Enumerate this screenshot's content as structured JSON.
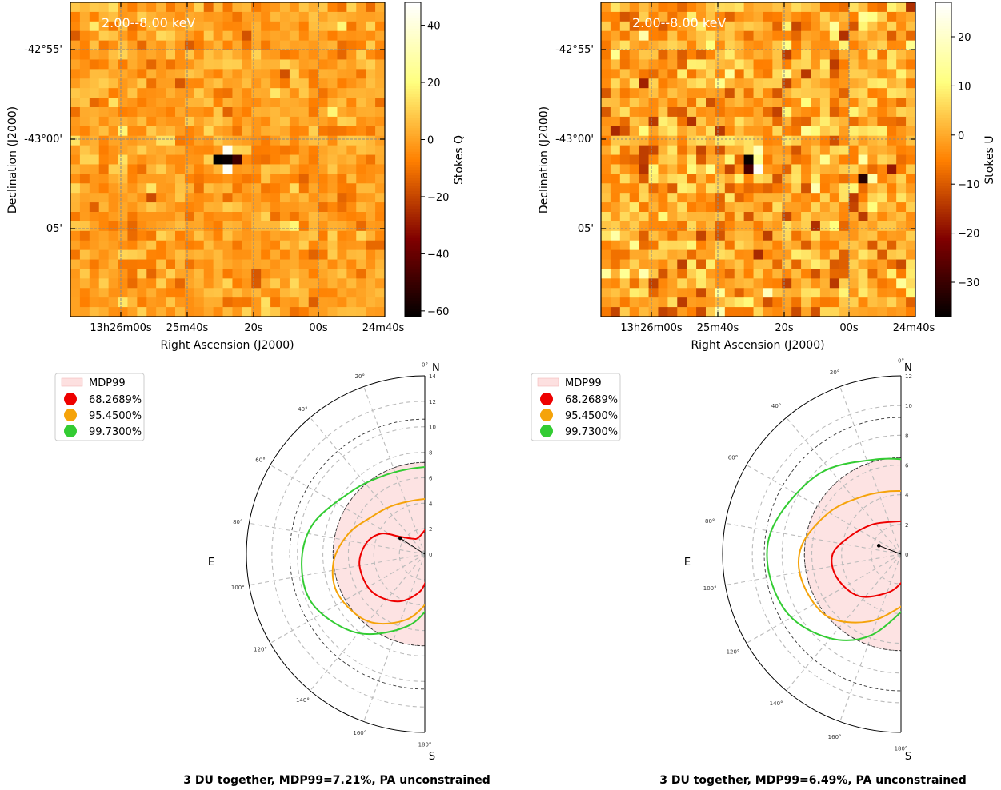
{
  "chart_data": [
    {
      "type": "heatmap",
      "panel": "top-left",
      "annotation": "2.00--8.00 keV",
      "xlabel": "Right Ascension (J2000)",
      "ylabel": "Declination (J2000)",
      "colorbar_label": "Stokes Q",
      "colorbar_range": [
        -62,
        48
      ],
      "colorbar_ticks": [
        40,
        20,
        0,
        -20,
        -40,
        -60
      ],
      "colorbar_tick_labels": [
        "40",
        "20",
        "0",
        "−20",
        "−40",
        "−60"
      ],
      "x_tick_labels": [
        "13h26m00s",
        "25m40s",
        "20s",
        "00s",
        "24m40s"
      ],
      "y_tick_labels": [
        "-42°55'",
        "-43°00'",
        "05'"
      ],
      "grid": true,
      "noise_std": 6,
      "seed": 7,
      "source_pixels": [
        {
          "col": 16,
          "row": 15,
          "value": 45
        },
        {
          "col": 15,
          "row": 16,
          "value": -62
        },
        {
          "col": 16,
          "row": 16,
          "value": -60
        },
        {
          "col": 17,
          "row": 16,
          "value": -48
        },
        {
          "col": 16,
          "row": 17,
          "value": 46
        }
      ]
    },
    {
      "type": "heatmap",
      "panel": "top-right",
      "annotation": "2.00--8.00 keV",
      "xlabel": "Right Ascension (J2000)",
      "ylabel": "Declination (J2000)",
      "colorbar_label": "Stokes U",
      "colorbar_range": [
        -37,
        27
      ],
      "colorbar_ticks": [
        20,
        10,
        0,
        -10,
        -20,
        -30
      ],
      "colorbar_tick_labels": [
        "20",
        "10",
        "0",
        "−10",
        "−20",
        "−30"
      ],
      "x_tick_labels": [
        "13h26m00s",
        "25m40s",
        "20s",
        "00s",
        "24m40s"
      ],
      "y_tick_labels": [
        "-42°55'",
        "-43°00'",
        "05'"
      ],
      "grid": true,
      "noise_std": 6,
      "seed": 11,
      "source_pixels": [
        {
          "col": 15,
          "row": 16,
          "value": -36
        },
        {
          "col": 16,
          "row": 15,
          "value": 18
        },
        {
          "col": 15,
          "row": 17,
          "value": -28
        },
        {
          "col": 16,
          "row": 17,
          "value": 26
        },
        {
          "col": 27,
          "row": 18,
          "value": -32
        }
      ]
    },
    {
      "type": "polar-contour",
      "panel": "bottom-left",
      "title": "3 DU together, MDP99=7.21%, PA unconstrained",
      "compass": {
        "north": "N",
        "south": "S",
        "east": "E"
      },
      "r_ticks": [
        14,
        12,
        10,
        8,
        6,
        4,
        2,
        0
      ],
      "r_max": 14,
      "r_dark_rings": [
        7.2,
        10.6
      ],
      "angle_ticks_deg": [
        0,
        20,
        40,
        60,
        80,
        100,
        120,
        140,
        160,
        180
      ],
      "mdp99": 7.21,
      "measurement": {
        "pd": 2.3,
        "pa_deg": 57
      },
      "contours": [
        {
          "level": "68.2689%",
          "color": "#ee0000",
          "points": [
            [
              2.5,
              -10
            ],
            [
              1.4,
              20
            ],
            [
              1.6,
              40
            ],
            [
              2.4,
              55
            ],
            [
              3.8,
              65
            ],
            [
              4.7,
              80
            ],
            [
              5.2,
              100
            ],
            [
              5.1,
              125
            ],
            [
              4.3,
              150
            ],
            [
              3.0,
              172
            ],
            [
              1.6,
              190
            ]
          ]
        },
        {
          "level": "95.4500%",
          "color": "#f5a30a",
          "points": [
            [
              4.6,
              -15
            ],
            [
              4.3,
              10
            ],
            [
              4.6,
              35
            ],
            [
              5.1,
              55
            ],
            [
              6.2,
              75
            ],
            [
              7.2,
              95
            ],
            [
              7.5,
              115
            ],
            [
              6.9,
              140
            ],
            [
              5.3,
              165
            ],
            [
              3.3,
              192
            ]
          ]
        },
        {
          "level": "99.7300%",
          "color": "#33cc33",
          "points": [
            [
              7.2,
              -14
            ],
            [
              6.8,
              10
            ],
            [
              7.0,
              30
            ],
            [
              7.6,
              50
            ],
            [
              9.1,
              75
            ],
            [
              9.7,
              95
            ],
            [
              9.6,
              115
            ],
            [
              8.1,
              140
            ],
            [
              5.7,
              168
            ],
            [
              3.4,
              195
            ]
          ]
        }
      ]
    },
    {
      "type": "polar-contour",
      "panel": "bottom-right",
      "title": "3 DU together, MDP99=6.49%, PA unconstrained",
      "compass": {
        "north": "N",
        "south": "S",
        "east": "E"
      },
      "r_ticks": [
        12,
        10,
        8,
        6,
        4,
        2,
        0
      ],
      "r_max": 12,
      "r_dark_rings": [
        6.5,
        9.2
      ],
      "angle_ticks_deg": [
        0,
        20,
        40,
        60,
        80,
        100,
        120,
        140,
        160,
        180
      ],
      "mdp99": 6.49,
      "measurement": {
        "pd": 1.6,
        "pa_deg": 69
      },
      "contours": [
        {
          "level": "68.2689%",
          "color": "#ee0000",
          "points": [
            [
              2.4,
              -20
            ],
            [
              2.3,
              20
            ],
            [
              2.8,
              45
            ],
            [
              3.6,
              70
            ],
            [
              4.6,
              90
            ],
            [
              4.6,
              110
            ],
            [
              4.0,
              135
            ],
            [
              2.7,
              162
            ],
            [
              1.8,
              185
            ]
          ]
        },
        {
          "level": "95.4500%",
          "color": "#f5a30a",
          "points": [
            [
              4.3,
              -12
            ],
            [
              4.3,
              10
            ],
            [
              4.7,
              35
            ],
            [
              5.6,
              60
            ],
            [
              6.7,
              85
            ],
            [
              6.9,
              105
            ],
            [
              6.5,
              130
            ],
            [
              5.0,
              155
            ],
            [
              3.3,
              188
            ]
          ]
        },
        {
          "level": "99.7300%",
          "color": "#33cc33",
          "points": [
            [
              6.4,
              -10
            ],
            [
              6.6,
              15
            ],
            [
              7.7,
              45
            ],
            [
              8.7,
              75
            ],
            [
              9.0,
              95
            ],
            [
              8.6,
              118
            ],
            [
              7.4,
              140
            ],
            [
              5.8,
              160
            ],
            [
              3.4,
              190
            ]
          ]
        }
      ]
    }
  ],
  "legend": {
    "items": [
      {
        "label": "MDP99",
        "kind": "patch",
        "color": "#fde0e0"
      },
      {
        "label": "68.2689%",
        "kind": "marker",
        "color": "#ee0000"
      },
      {
        "label": "95.4500%",
        "kind": "marker",
        "color": "#f5a30a"
      },
      {
        "label": "99.7300%",
        "kind": "marker",
        "color": "#33cc33"
      }
    ]
  }
}
